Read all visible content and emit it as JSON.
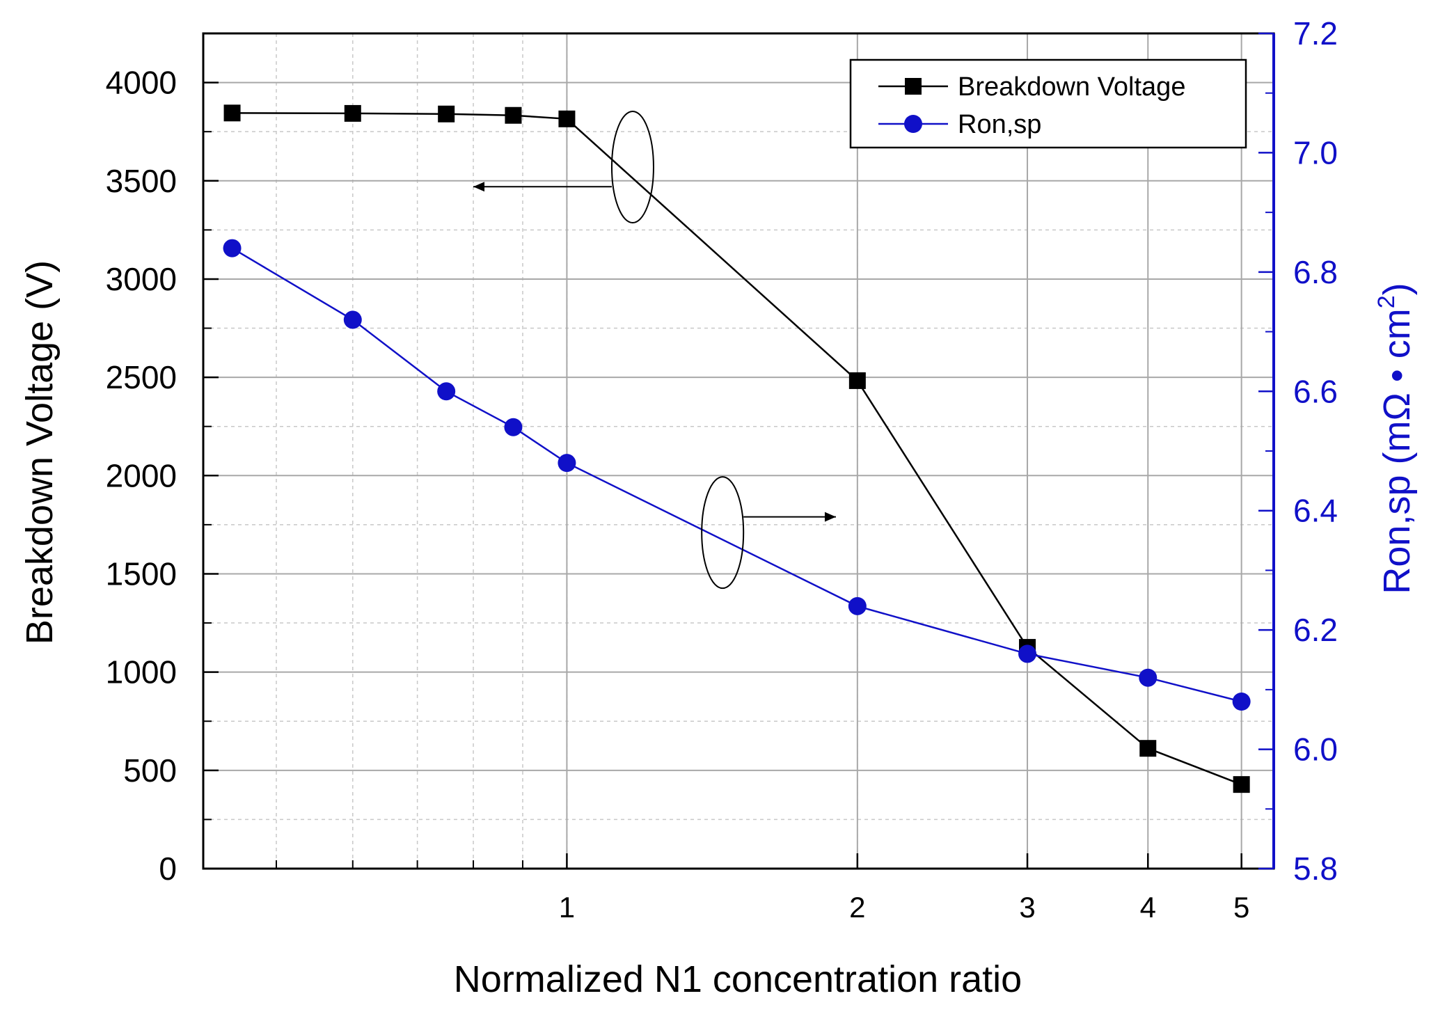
{
  "chart_data": {
    "type": "line",
    "x_scale": "log",
    "xlabel": "Normalized N1 concentration ratio",
    "ylabel_left": "Breakdown Voltage (V)",
    "ylabel_right_prefix": "Ron,sp (mΩ • cm",
    "ylabel_right_superscript": "2",
    "ylabel_right_suffix": ")",
    "xlim": [
      0.42,
      5.4
    ],
    "ylim_left": [
      0,
      4250
    ],
    "ylim_right": [
      5.8,
      7.2
    ],
    "x_ticks": [
      1,
      2,
      3,
      4,
      5
    ],
    "x_tick_labels": [
      "1",
      "2",
      "3",
      "4",
      "5"
    ],
    "y_left_ticks": [
      0,
      500,
      1000,
      1500,
      2000,
      2500,
      3000,
      3500,
      4000
    ],
    "y_left_tick_labels": [
      "0",
      "500",
      "1000",
      "1500",
      "2000",
      "2500",
      "3000",
      "3500",
      "4000"
    ],
    "y_right_ticks": [
      5.8,
      6.0,
      6.2,
      6.4,
      6.6,
      6.8,
      7.0,
      7.2
    ],
    "y_right_tick_labels": [
      "5.8",
      "6.0",
      "6.2",
      "6.4",
      "6.6",
      "6.8",
      "7.0",
      "7.2"
    ],
    "grid": true,
    "legend_position": "top-right",
    "series": [
      {
        "name": "Breakdown Voltage",
        "axis": "left",
        "color": "#000000",
        "marker": "square",
        "x": [
          0.45,
          0.6,
          0.75,
          0.88,
          1.0,
          2.0,
          3.0,
          4.0,
          5.0
        ],
        "values": [
          3845,
          3843,
          3840,
          3833,
          3815,
          2483,
          1126,
          612,
          428
        ]
      },
      {
        "name": "Ron,sp",
        "axis": "right",
        "color": "#1010c8",
        "marker": "circle",
        "x": [
          0.45,
          0.6,
          0.75,
          0.88,
          1.0,
          2.0,
          3.0,
          4.0,
          5.0
        ],
        "values": [
          6.84,
          6.72,
          6.6,
          6.54,
          6.48,
          6.24,
          6.16,
          6.12,
          6.08
        ]
      }
    ],
    "annotations": [
      {
        "type": "ellipse-arrow",
        "points_to": "left axis",
        "series": "Breakdown Voltage"
      },
      {
        "type": "ellipse-arrow",
        "points_to": "right axis",
        "series": "Ron,sp"
      }
    ]
  }
}
